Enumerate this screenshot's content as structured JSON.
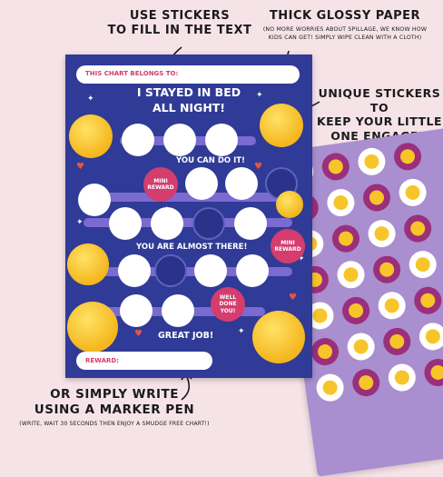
{
  "callouts": {
    "stickers": "USE STICKERS\nTO FILL IN THE TEXT",
    "paper_title": "THICK GLOSSY PAPER",
    "paper_note": "(NO MORE WORRIES ABOUT SPILLAGE, WE KNOW HOW\nKIDS CAN GET! SIMPLY WIPE CLEAN WITH A CLOTH)",
    "unique": "UNIQUE STICKERS TO\nKEEP YOUR LITTLE\nONE ENGAGED",
    "marker_title": "OR SIMPLY WRITE\nUSING A MARKER PEN",
    "marker_note": "(WRITE, WAIT 30 SECONDS THEN ENJOY A SMUDGE FREE CHART!)"
  },
  "chart": {
    "belongs_label": "THIS CHART BELONGS TO:",
    "title": "I STAYED IN BED\nALL NIGHT!",
    "msg_1": "YOU CAN DO IT!",
    "msg_2": "YOU ARE ALMOST THERE!",
    "msg_3": "GREAT JOB!",
    "reward_1": "MINI\nREWARD",
    "reward_2": "MINI\nREWARD",
    "reward_3": "WELL\nDONE\nYOU!",
    "reward_label": "REWARD:"
  },
  "colors": {
    "background": "#f6e3e8",
    "poster": "#2f3b96",
    "accent": "#d43d6e",
    "sheet": "#a98fcf"
  }
}
